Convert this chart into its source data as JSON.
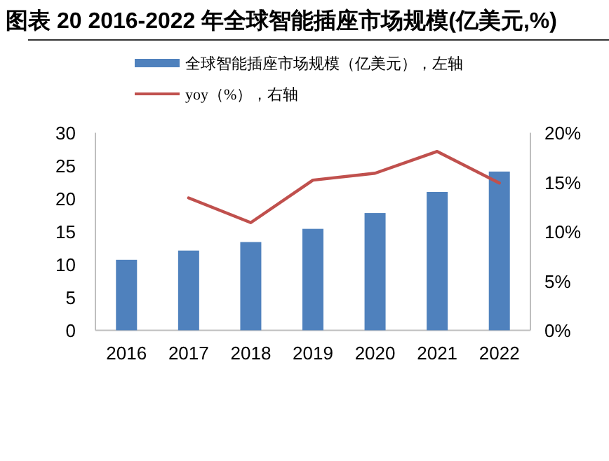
{
  "chart_data": {
    "type": "bar",
    "title": "图表 20 2016-2022 年全球智能插座市场规模(亿美元,%)",
    "categories": [
      "2016",
      "2017",
      "2018",
      "2019",
      "2020",
      "2021",
      "2022"
    ],
    "series": [
      {
        "name": "全球智能插座市场规模（亿美元），左轴",
        "color": "#4f81bd",
        "values": [
          10.7,
          12.1,
          13.4,
          15.4,
          17.8,
          21.0,
          24.1
        ]
      },
      {
        "name": "yoy（%），右轴",
        "type": "line",
        "axis": "y2",
        "color": "#c0504d",
        "values": [
          null,
          13.4,
          10.9,
          15.2,
          15.9,
          18.1,
          14.9
        ]
      }
    ],
    "ylim": [
      0,
      30
    ],
    "yticks": [
      0,
      5,
      10,
      15,
      20,
      25,
      30
    ],
    "y2lim": [
      0,
      20
    ],
    "y2ticks": [
      {
        "value": 0,
        "label": "0%"
      },
      {
        "value": 5,
        "label": "5%"
      },
      {
        "value": 10,
        "label": "10%"
      },
      {
        "value": 15,
        "label": "15%"
      },
      {
        "value": 20,
        "label": "20%"
      }
    ],
    "legend": "top"
  }
}
